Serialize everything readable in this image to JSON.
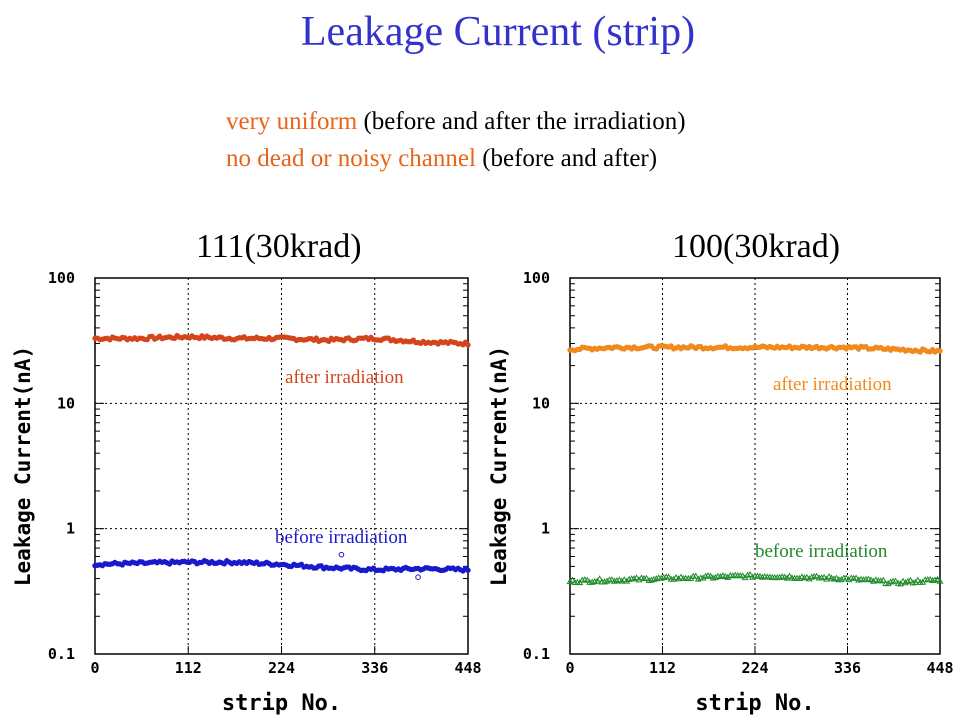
{
  "slide": {
    "title": "Leakage Current (strip)",
    "bullets": [
      {
        "highlight": "very uniform",
        "rest": " (before and after the irradiation)"
      },
      {
        "highlight": "no dead or noisy channel",
        "rest": " (before and after)"
      }
    ]
  },
  "chart_data": [
    {
      "type": "scatter",
      "title": "111(30krad)",
      "xlabel": "strip No.",
      "ylabel": "Leakage Current(nA)",
      "yscale": "log",
      "xlim": [
        0,
        448
      ],
      "ylim": [
        0.1,
        100
      ],
      "xticks": [
        "0",
        "112",
        "224",
        "336",
        "448"
      ],
      "yticks": [
        "0.1",
        "1",
        "10",
        "100"
      ],
      "grid": true,
      "series": [
        {
          "name": "after irradiation",
          "color": "#d4451c",
          "marker": "circle",
          "x": [
            0,
            56,
            112,
            168,
            224,
            280,
            336,
            392,
            448
          ],
          "values": [
            33,
            33,
            34,
            33,
            33,
            32,
            33,
            31,
            30
          ]
        },
        {
          "name": "before irradiation",
          "color": "#1a1acc",
          "marker": "circle",
          "x": [
            0,
            56,
            112,
            168,
            224,
            280,
            336,
            392,
            448
          ],
          "values": [
            0.52,
            0.53,
            0.54,
            0.54,
            0.52,
            0.49,
            0.47,
            0.48,
            0.47
          ],
          "outliers": [
            {
              "x": 296,
              "y": 0.62
            },
            {
              "x": 388,
              "y": 0.41
            }
          ]
        }
      ],
      "series_label_positions": [
        "right-upper",
        "right-lower"
      ]
    },
    {
      "type": "scatter",
      "title": "100(30krad)",
      "xlabel": "strip No.",
      "ylabel": "Leakage Current(nA)",
      "yscale": "log",
      "xlim": [
        0,
        448
      ],
      "ylim": [
        0.1,
        100
      ],
      "xticks": [
        "0",
        "112",
        "224",
        "336",
        "448"
      ],
      "yticks": [
        "0.1",
        "1",
        "10",
        "100"
      ],
      "grid": true,
      "series": [
        {
          "name": "after irradiation",
          "color": "#f08a1e",
          "marker": "circle",
          "x": [
            0,
            56,
            112,
            168,
            224,
            280,
            336,
            392,
            448
          ],
          "values": [
            27,
            28,
            28,
            28,
            28,
            28,
            28,
            27,
            26
          ]
        },
        {
          "name": "before irradiation",
          "color": "#1f8a2a",
          "marker": "triangle",
          "x": [
            0,
            56,
            112,
            168,
            224,
            280,
            336,
            392,
            448
          ],
          "values": [
            0.38,
            0.39,
            0.4,
            0.41,
            0.42,
            0.41,
            0.4,
            0.37,
            0.39
          ]
        }
      ],
      "series_label_positions": [
        "right-upper",
        "right-lower"
      ]
    }
  ]
}
